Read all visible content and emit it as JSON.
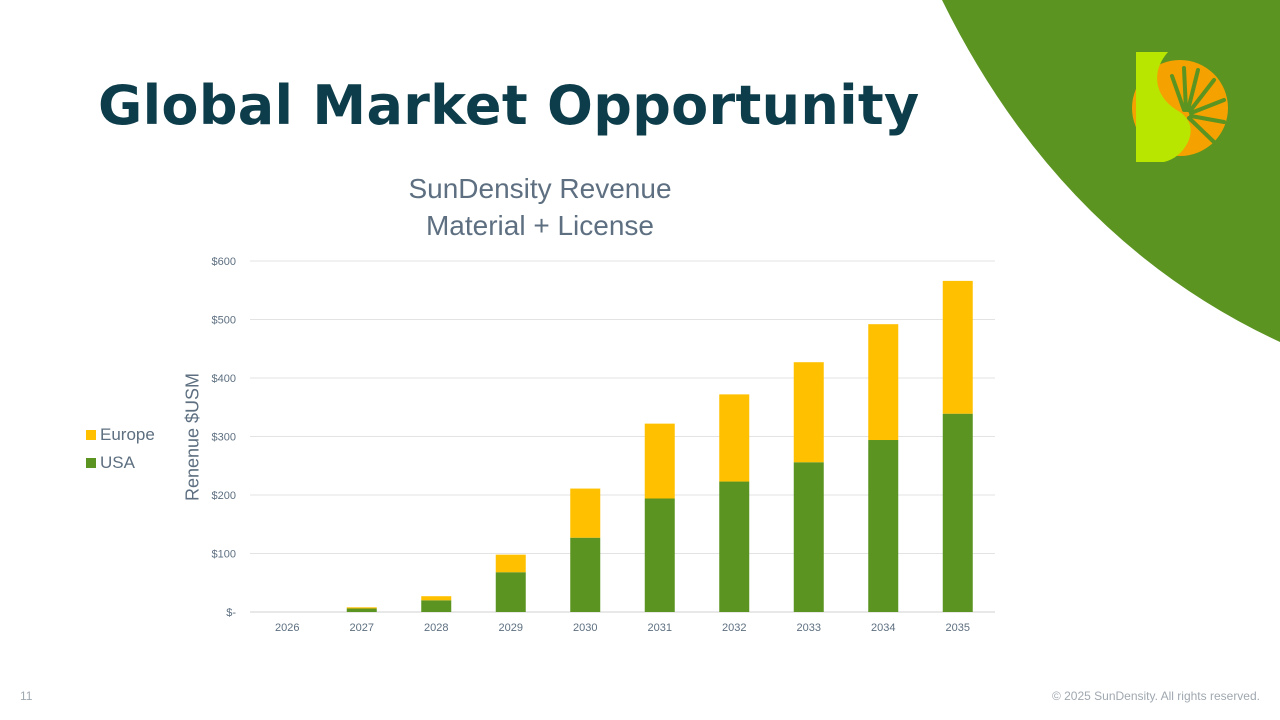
{
  "slide": {
    "title": "Global Market Opportunity",
    "number": "11",
    "copyright": "© 2025 SunDensity. All rights reserved.",
    "title_color": "#0d3d4a",
    "accent_green": "#5b9420",
    "logo_lime": "#b8e600",
    "logo_orange": "#f5a100"
  },
  "chart_data": {
    "type": "bar",
    "stacked": true,
    "title_lines": [
      "SunDensity Revenue",
      "Material + License"
    ],
    "xlabel": "",
    "ylabel": "Renenue $USM",
    "categories": [
      "2026",
      "2027",
      "2028",
      "2029",
      "2030",
      "2031",
      "2032",
      "2033",
      "2034",
      "2035"
    ],
    "series": [
      {
        "name": "USA",
        "color": "#5b9420",
        "values": [
          0,
          6,
          20,
          68,
          127,
          194,
          223,
          256,
          294,
          339
        ]
      },
      {
        "name": "Europe",
        "color": "#ffc000",
        "values": [
          0,
          2,
          7,
          30,
          84,
          128,
          149,
          171,
          198,
          227
        ]
      }
    ],
    "legend": {
      "position": "left",
      "order": [
        "Europe",
        "USA"
      ]
    },
    "ylim": [
      0,
      600
    ],
    "yticks": [
      0,
      100,
      200,
      300,
      400,
      500,
      600
    ],
    "ytick_labels": [
      "$-",
      "$100",
      "$200",
      "$300",
      "$400",
      "$500",
      "$600"
    ],
    "grid": true
  }
}
